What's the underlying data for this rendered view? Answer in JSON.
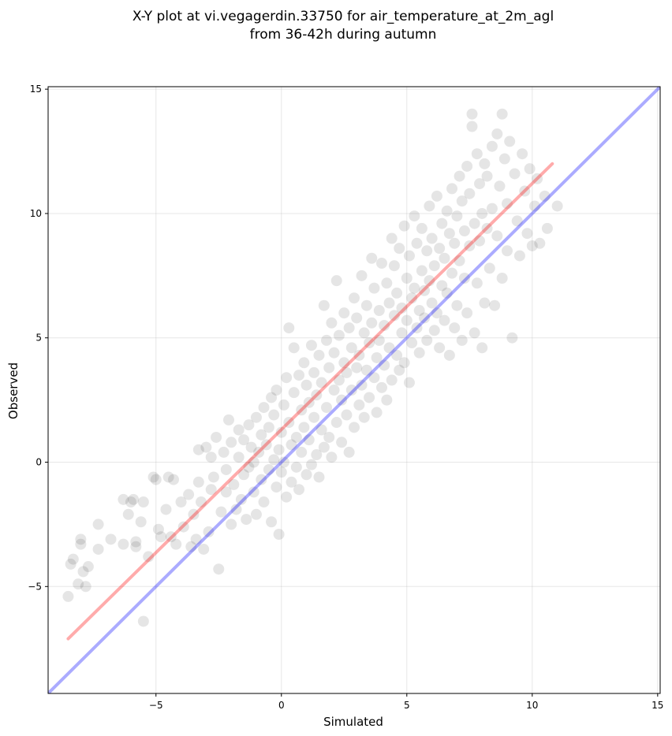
{
  "chart_data": {
    "type": "scatter",
    "title_line1": "X-Y plot at vi.vegagerdin.33750 for air_temperature_at_2m_agl",
    "title_line2": "from 36-42h during autumn",
    "xlabel": "Simulated",
    "ylabel": "Observed",
    "xlim": [
      -9.3,
      15.1
    ],
    "ylim": [
      -9.3,
      15.1
    ],
    "xticks": [
      -5,
      0,
      5,
      10,
      15
    ],
    "yticks": [
      -5,
      0,
      5,
      10,
      15
    ],
    "xtick_labels": [
      "−5",
      "0",
      "5",
      "10",
      "15"
    ],
    "ytick_labels": [
      "−5",
      "0",
      "5",
      "10",
      "15"
    ],
    "grid": true,
    "point_color": "#000000",
    "point_alpha": 0.1,
    "identity_line": {
      "x": [
        -9.3,
        15.1
      ],
      "y": [
        -9.3,
        15.1
      ],
      "color": "#0000ff",
      "alpha": 0.33
    },
    "fit_line": {
      "x": [
        -8.5,
        10.8
      ],
      "y": [
        -7.1,
        12.0
      ],
      "color": "#ff0000",
      "alpha": 0.33
    },
    "points": [
      [
        -8.5,
        -5.4
      ],
      [
        -8.4,
        -4.1
      ],
      [
        -8.3,
        -3.9
      ],
      [
        -8.0,
        -3.1
      ],
      [
        -8.0,
        -3.3
      ],
      [
        -7.9,
        -4.4
      ],
      [
        -8.1,
        -4.9
      ],
      [
        -7.7,
        -4.2
      ],
      [
        -7.8,
        -5.0
      ],
      [
        -7.3,
        -2.5
      ],
      [
        -7.3,
        -3.5
      ],
      [
        -6.8,
        -3.1
      ],
      [
        -6.3,
        -1.5
      ],
      [
        -6.3,
        -3.3
      ],
      [
        -6.1,
        -2.1
      ],
      [
        -6.0,
        -1.6
      ],
      [
        -5.9,
        -1.5
      ],
      [
        -5.8,
        -3.2
      ],
      [
        -5.8,
        -3.4
      ],
      [
        -5.6,
        -2.4
      ],
      [
        -5.5,
        -1.6
      ],
      [
        -5.5,
        -6.4
      ],
      [
        -5.3,
        -3.8
      ],
      [
        -5.1,
        -0.6
      ],
      [
        -5.0,
        -0.7
      ],
      [
        -4.9,
        -2.7
      ],
      [
        -4.8,
        -3.0
      ],
      [
        -4.6,
        -1.9
      ],
      [
        -4.5,
        -0.6
      ],
      [
        -4.4,
        -3.0
      ],
      [
        -4.3,
        -0.7
      ],
      [
        -4.2,
        -3.3
      ],
      [
        -4.0,
        -1.6
      ],
      [
        -3.9,
        -2.6
      ],
      [
        -3.7,
        -1.3
      ],
      [
        -3.6,
        -3.4
      ],
      [
        -3.5,
        -2.1
      ],
      [
        -3.4,
        -3.1
      ],
      [
        -3.3,
        -0.8
      ],
      [
        -3.3,
        0.5
      ],
      [
        -3.2,
        -1.6
      ],
      [
        -3.1,
        -3.5
      ],
      [
        -3.0,
        0.6
      ],
      [
        -2.9,
        -2.8
      ],
      [
        -2.8,
        -1.1
      ],
      [
        -2.8,
        0.2
      ],
      [
        -2.7,
        -0.6
      ],
      [
        -2.6,
        1.0
      ],
      [
        -2.5,
        -4.3
      ],
      [
        -2.4,
        -2.0
      ],
      [
        -2.3,
        0.4
      ],
      [
        -2.2,
        -1.2
      ],
      [
        -2.2,
        -0.3
      ],
      [
        -2.1,
        1.7
      ],
      [
        -2.0,
        -2.5
      ],
      [
        -2.0,
        0.8
      ],
      [
        -1.9,
        -0.9
      ],
      [
        -1.8,
        -1.9
      ],
      [
        -1.7,
        0.2
      ],
      [
        -1.7,
        1.3
      ],
      [
        -1.6,
        -1.5
      ],
      [
        -1.5,
        -0.5
      ],
      [
        -1.5,
        0.9
      ],
      [
        -1.4,
        -2.3
      ],
      [
        -1.3,
        -0.2
      ],
      [
        -1.3,
        1.5
      ],
      [
        -1.2,
        0.6
      ],
      [
        -1.1,
        -1.2
      ],
      [
        -1.1,
        0.0
      ],
      [
        -1.0,
        1.8
      ],
      [
        -1.0,
        -2.1
      ],
      [
        -0.9,
        0.4
      ],
      [
        -0.8,
        1.1
      ],
      [
        -0.8,
        -0.7
      ],
      [
        -0.7,
        2.2
      ],
      [
        -0.7,
        -1.6
      ],
      [
        -0.6,
        0.7
      ],
      [
        -0.5,
        1.4
      ],
      [
        -0.5,
        -0.3
      ],
      [
        -0.4,
        2.6
      ],
      [
        -0.4,
        -2.4
      ],
      [
        -0.3,
        0.1
      ],
      [
        -0.3,
        1.9
      ],
      [
        -0.2,
        -1.0
      ],
      [
        -0.2,
        2.9
      ],
      [
        -0.1,
        0.5
      ],
      [
        -0.1,
        -2.9
      ],
      [
        0.0,
        1.2
      ],
      [
        0.0,
        -0.4
      ],
      [
        0.1,
        2.3
      ],
      [
        0.1,
        0.0
      ],
      [
        0.2,
        3.4
      ],
      [
        0.2,
        -1.4
      ],
      [
        0.3,
        1.6
      ],
      [
        0.3,
        5.4
      ],
      [
        0.4,
        0.7
      ],
      [
        0.4,
        -0.8
      ],
      [
        0.5,
        2.8
      ],
      [
        0.5,
        4.6
      ],
      [
        0.6,
        1.0
      ],
      [
        0.6,
        -0.2
      ],
      [
        0.7,
        3.5
      ],
      [
        0.7,
        -1.1
      ],
      [
        0.8,
        2.1
      ],
      [
        0.8,
        0.4
      ],
      [
        0.9,
        4.0
      ],
      [
        0.9,
        1.4
      ],
      [
        1.0,
        -0.5
      ],
      [
        1.0,
        3.1
      ],
      [
        1.1,
        2.4
      ],
      [
        1.1,
        0.9
      ],
      [
        1.2,
        4.7
      ],
      [
        1.2,
        -0.1
      ],
      [
        1.3,
        1.8
      ],
      [
        1.3,
        3.6
      ],
      [
        1.4,
        0.3
      ],
      [
        1.4,
        2.7
      ],
      [
        1.5,
        4.3
      ],
      [
        1.5,
        -0.6
      ],
      [
        1.6,
        1.3
      ],
      [
        1.6,
        3.2
      ],
      [
        1.7,
        6.3
      ],
      [
        1.7,
        0.6
      ],
      [
        1.8,
        2.2
      ],
      [
        1.8,
        4.9
      ],
      [
        1.9,
        1.0
      ],
      [
        1.9,
        3.8
      ],
      [
        2.0,
        5.6
      ],
      [
        2.0,
        0.2
      ],
      [
        2.1,
        2.9
      ],
      [
        2.1,
        4.4
      ],
      [
        2.2,
        1.6
      ],
      [
        2.2,
        7.3
      ],
      [
        2.3,
        3.3
      ],
      [
        2.3,
        5.1
      ],
      [
        2.4,
        0.8
      ],
      [
        2.4,
        2.5
      ],
      [
        2.5,
        4.0
      ],
      [
        2.5,
        6.0
      ],
      [
        2.6,
        1.9
      ],
      [
        2.6,
        3.6
      ],
      [
        2.7,
        5.4
      ],
      [
        2.7,
        0.4
      ],
      [
        2.8,
        2.9
      ],
      [
        2.8,
        4.6
      ],
      [
        2.9,
        6.6
      ],
      [
        2.9,
        1.4
      ],
      [
        3.0,
        3.8
      ],
      [
        3.0,
        5.8
      ],
      [
        3.1,
        2.3
      ],
      [
        3.1,
        4.3
      ],
      [
        3.2,
        7.5
      ],
      [
        3.2,
        3.1
      ],
      [
        3.3,
        5.2
      ],
      [
        3.3,
        1.8
      ],
      [
        3.4,
        6.3
      ],
      [
        3.4,
        3.7
      ],
      [
        3.5,
        4.8
      ],
      [
        3.5,
        2.6
      ],
      [
        3.6,
        8.2
      ],
      [
        3.6,
        5.6
      ],
      [
        3.7,
        3.4
      ],
      [
        3.7,
        7.0
      ],
      [
        3.8,
        4.2
      ],
      [
        3.8,
        2.0
      ],
      [
        3.9,
        6.1
      ],
      [
        3.9,
        4.9
      ],
      [
        4.0,
        3.0
      ],
      [
        4.0,
        8.0
      ],
      [
        4.1,
        5.5
      ],
      [
        4.1,
        3.9
      ],
      [
        4.2,
        7.2
      ],
      [
        4.2,
        2.5
      ],
      [
        4.3,
        6.4
      ],
      [
        4.3,
        4.6
      ],
      [
        4.4,
        9.0
      ],
      [
        4.4,
        3.3
      ],
      [
        4.5,
        5.9
      ],
      [
        4.5,
        7.9
      ],
      [
        4.6,
        4.3
      ],
      [
        4.6,
        6.8
      ],
      [
        4.7,
        3.7
      ],
      [
        4.7,
        8.6
      ],
      [
        4.8,
        5.2
      ],
      [
        4.8,
        6.2
      ],
      [
        4.9,
        9.5
      ],
      [
        4.9,
        4.0
      ],
      [
        5.0,
        7.4
      ],
      [
        5.0,
        5.7
      ],
      [
        5.1,
        3.2
      ],
      [
        5.1,
        8.3
      ],
      [
        5.2,
        6.6
      ],
      [
        5.2,
        4.8
      ],
      [
        5.3,
        9.9
      ],
      [
        5.3,
        7.0
      ],
      [
        5.4,
        5.4
      ],
      [
        5.4,
        8.8
      ],
      [
        5.5,
        6.1
      ],
      [
        5.5,
        4.4
      ],
      [
        5.6,
        7.7
      ],
      [
        5.6,
        9.4
      ],
      [
        5.7,
        5.8
      ],
      [
        5.7,
        6.9
      ],
      [
        5.8,
        8.5
      ],
      [
        5.8,
        4.9
      ],
      [
        5.9,
        10.3
      ],
      [
        5.9,
        7.3
      ],
      [
        6.0,
        6.4
      ],
      [
        6.0,
        9.0
      ],
      [
        6.1,
        5.3
      ],
      [
        6.1,
        7.9
      ],
      [
        6.2,
        10.7
      ],
      [
        6.2,
        6.0
      ],
      [
        6.3,
        8.6
      ],
      [
        6.3,
        4.6
      ],
      [
        6.4,
        9.6
      ],
      [
        6.4,
        7.1
      ],
      [
        6.5,
        5.7
      ],
      [
        6.5,
        8.2
      ],
      [
        6.6,
        10.1
      ],
      [
        6.6,
        6.8
      ],
      [
        6.7,
        9.2
      ],
      [
        6.7,
        4.3
      ],
      [
        6.8,
        7.6
      ],
      [
        6.8,
        11.0
      ],
      [
        6.9,
        8.8
      ],
      [
        6.9,
        5.4
      ],
      [
        7.0,
        9.9
      ],
      [
        7.0,
        6.3
      ],
      [
        7.1,
        11.5
      ],
      [
        7.1,
        8.1
      ],
      [
        7.2,
        10.5
      ],
      [
        7.2,
        4.9
      ],
      [
        7.3,
        7.4
      ],
      [
        7.3,
        9.3
      ],
      [
        7.4,
        11.9
      ],
      [
        7.4,
        6.0
      ],
      [
        7.5,
        8.7
      ],
      [
        7.5,
        10.8
      ],
      [
        7.6,
        14.0
      ],
      [
        7.6,
        13.5
      ],
      [
        7.7,
        5.2
      ],
      [
        7.7,
        9.6
      ],
      [
        7.8,
        12.4
      ],
      [
        7.8,
        7.2
      ],
      [
        7.9,
        11.2
      ],
      [
        7.9,
        8.9
      ],
      [
        8.0,
        10.0
      ],
      [
        8.0,
        4.6
      ],
      [
        8.1,
        12.0
      ],
      [
        8.1,
        6.4
      ],
      [
        8.2,
        9.4
      ],
      [
        8.2,
        11.5
      ],
      [
        8.3,
        7.8
      ],
      [
        8.4,
        12.7
      ],
      [
        8.4,
        10.2
      ],
      [
        8.5,
        6.3
      ],
      [
        8.6,
        13.2
      ],
      [
        8.6,
        9.1
      ],
      [
        8.7,
        11.1
      ],
      [
        8.8,
        14.0
      ],
      [
        8.8,
        7.4
      ],
      [
        8.9,
        12.2
      ],
      [
        9.0,
        10.4
      ],
      [
        9.0,
        8.5
      ],
      [
        9.1,
        12.9
      ],
      [
        9.2,
        5.0
      ],
      [
        9.3,
        11.6
      ],
      [
        9.4,
        9.7
      ],
      [
        9.5,
        8.3
      ],
      [
        9.6,
        12.4
      ],
      [
        9.7,
        10.9
      ],
      [
        9.8,
        9.2
      ],
      [
        9.9,
        11.8
      ],
      [
        10.0,
        8.7
      ],
      [
        10.1,
        10.3
      ],
      [
        10.2,
        11.4
      ],
      [
        10.3,
        8.8
      ],
      [
        10.5,
        10.7
      ],
      [
        10.6,
        9.4
      ],
      [
        11.0,
        10.3
      ]
    ]
  }
}
